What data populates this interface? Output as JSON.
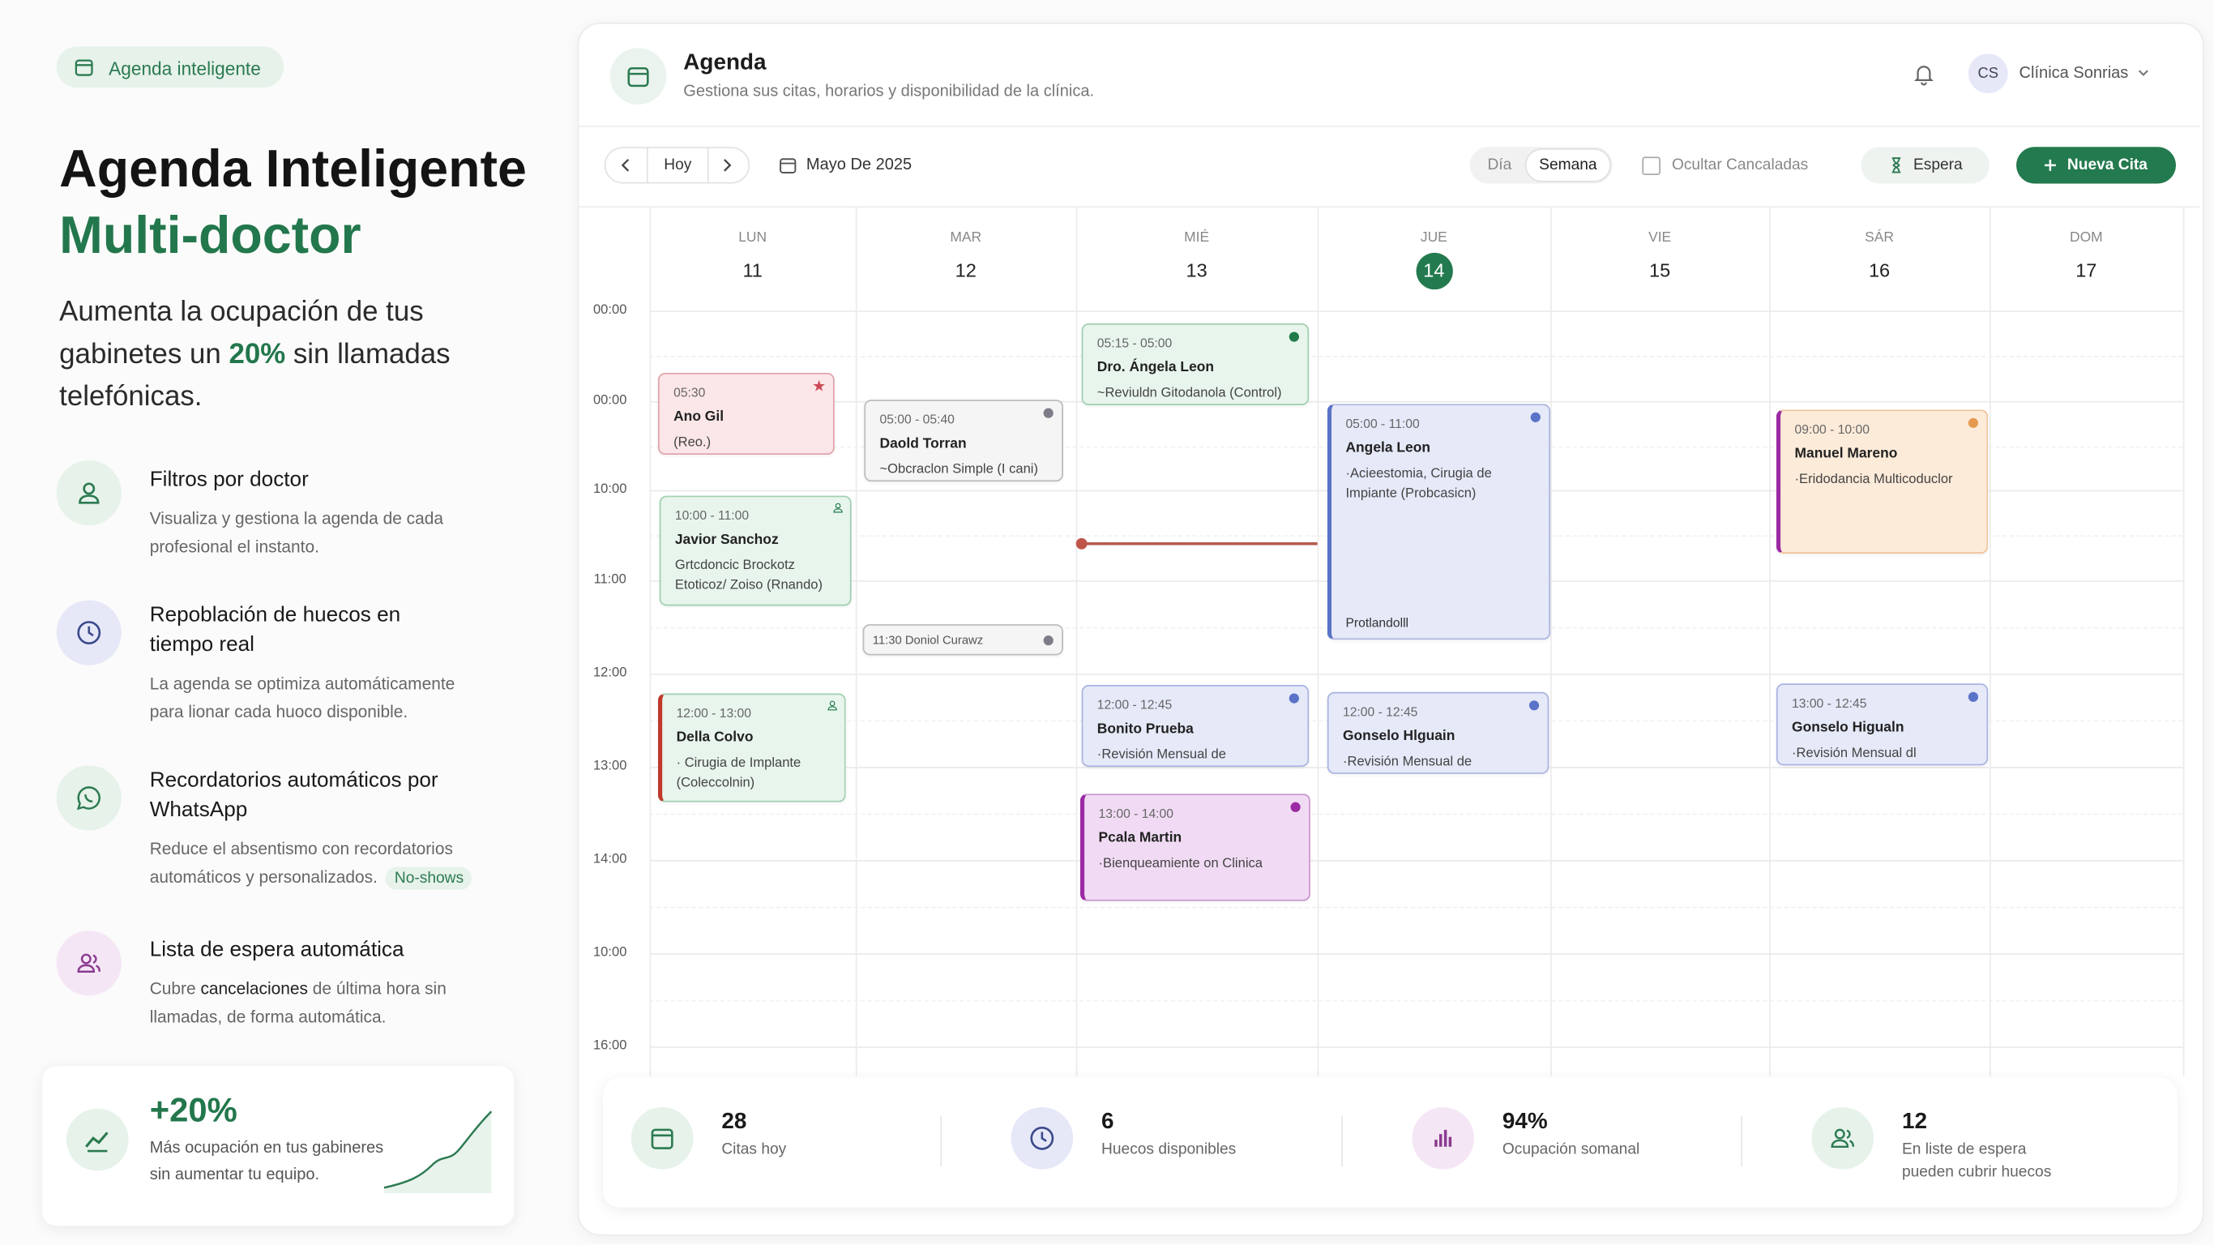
{
  "badge": "Agenda inteligente",
  "hero": {
    "title_line1": "Agenda Inteligente",
    "title_line2": "Multi-doctor",
    "lead_before": "Aumenta la ocupación de tus gabinetes un ",
    "lead_highlight": "20%",
    "lead_after": " sin llamadas telefónicas."
  },
  "features": [
    {
      "title": "Filtros por doctor",
      "text": "Visualiza y gestiona la agenda de cada profesional el instanto."
    },
    {
      "title": "Repoblación de huecos en tiempo real",
      "text": "La agenda se optimiza automáticamente para lionar cada huoco disponible."
    },
    {
      "title": "Recordatorios automáticos por WhatsApp",
      "text": "Reduce el absentismo con recordatorios automáticos y personalizados.",
      "tag": "No-shows"
    },
    {
      "title": "Lista de espera automática",
      "text_before": "Cubre ",
      "text_bold": "cancelaciones",
      "text_after": " de última hora sin llamadas, de forma automática."
    }
  ],
  "promo": {
    "value": "+20%",
    "text": "Más ocupación en tus gabineres sin aumentar tu equipo."
  },
  "app": {
    "title": "Agenda",
    "subtitle": "Gestiona sus citas, horarios y disponibilidad de la clínica.",
    "user_initials": "CS",
    "user_name": "Clínica Sonrias"
  },
  "toolbar": {
    "today": "Hoy",
    "month": "Mayo De 2025",
    "view_day": "Día",
    "view_week": "Semana",
    "hide_cancelled": "Ocultar Cancaladas",
    "waitlist": "Espera",
    "new": "Nueva Cita"
  },
  "days": [
    {
      "name": "LUN",
      "num": "11"
    },
    {
      "name": "MAR",
      "num": "12"
    },
    {
      "name": "MIÉ",
      "num": "13"
    },
    {
      "name": "JUE",
      "num": "14"
    },
    {
      "name": "VIE",
      "num": "15"
    },
    {
      "name": "SÁR",
      "num": "16"
    },
    {
      "name": "DOM",
      "num": "17"
    }
  ],
  "times": [
    "00:00",
    "00:00",
    "10:00",
    "11:00",
    "12:00",
    "13:00",
    "14:00",
    "10:00",
    "16:00"
  ],
  "appointments": [
    {
      "time": "05:15 - 05:00",
      "name": "Dro. Ángela Leon",
      "detail": "~Reviuldn Gitodanola (Control)"
    },
    {
      "time": "05:30",
      "name": "Ano Gil",
      "detail": "(Reo.)"
    },
    {
      "time": "05:00 - 05:40",
      "name": "Daold Torran",
      "detail": "~Obcraclon Simple (I cani)"
    },
    {
      "time": "05:00 - 11:00",
      "name": "Angela Leon",
      "detail": "·Acieestomia, Cirugia de Impiante (Probcasicn)",
      "note": "Protlandolll"
    },
    {
      "time": "09:00 - 10:00",
      "name": "Manuel Mareno",
      "detail": "·Eridodancia Multicoduclor"
    },
    {
      "time": "10:00 - 11:00",
      "name": "Javior Sanchoz",
      "detail": "Grtcdoncic Brockotz Etoticoz/ Zoiso (Rnando)"
    },
    {
      "time": "11:30 Doniol Curawz"
    },
    {
      "time": "12:00 - 13:00",
      "name": "Della Colvo",
      "detail": "· Cirugia de Implante (Coleccolnin)"
    },
    {
      "time": "12:00 - 12:45",
      "name": "Bonito Prueba",
      "detail": "·Revisión Mensual de Ortodoncio"
    },
    {
      "time": "12:00 - 12:45",
      "name": "Gonselo Hlguain",
      "detail": "·Revisión Mensual de Ortodoncia"
    },
    {
      "time": "13:00 - 12:45",
      "name": "Gonselo Higualn",
      "detail": "·Revisión Mensual dl Ortodon..."
    },
    {
      "time": "13:00 - 14:00",
      "name": "Pcala Martin",
      "detail": "·Bienqueamiente on Clinica"
    }
  ],
  "stats": [
    {
      "value": "28",
      "label": "Citas hoy"
    },
    {
      "value": "6",
      "label": "Huecos disponibles"
    },
    {
      "value": "94%",
      "label": "Ocupación somanal"
    },
    {
      "value": "12",
      "label": "En liste de espera pueden cubrir huecos"
    }
  ]
}
